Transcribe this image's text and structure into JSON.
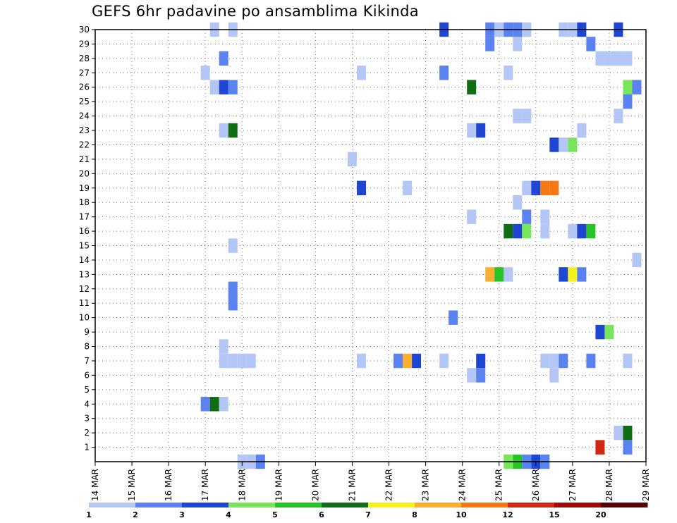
{
  "chart_data": {
    "type": "heatmap",
    "title": "GEFS 6hr padavine po ansamblima Kikinda",
    "x_labels": [
      "14 MAR",
      "15 MAR",
      "16 MAR",
      "17 MAR",
      "18 MAR",
      "19 MAR",
      "20 MAR",
      "21 MAR",
      "22 MAR",
      "23 MAR",
      "24 MAR",
      "25 MAR",
      "26 MAR",
      "27 MAR",
      "28 MAR",
      "29 MAR"
    ],
    "y_labels": [
      "1",
      "2",
      "3",
      "4",
      "5",
      "6",
      "7",
      "8",
      "9",
      "10",
      "11",
      "12",
      "13",
      "14",
      "15",
      "16",
      "17",
      "18",
      "19",
      "20",
      "21",
      "22",
      "23",
      "24",
      "25",
      "26",
      "27",
      "28",
      "29",
      "30"
    ],
    "xlim_days": [
      0,
      15
    ],
    "ylim_members": [
      0,
      30
    ],
    "grid": true,
    "colorbar": {
      "labels": [
        "1",
        "2",
        "3",
        "4",
        "5",
        "6",
        "7",
        "8",
        "10",
        "12",
        "15",
        "20"
      ],
      "colors": [
        "#b4c6f5",
        "#5a82f0",
        "#1e46d2",
        "#78e65a",
        "#28c328",
        "#0f6e14",
        "#f5f01e",
        "#faaf32",
        "#f57814",
        "#d2280f",
        "#a00a0a",
        "#5a0000"
      ]
    },
    "cells": [
      {
        "day": 3.25,
        "member": 30,
        "value": 1
      },
      {
        "day": 3.75,
        "member": 30,
        "value": 1
      },
      {
        "day": 9.5,
        "member": 30,
        "value": 3
      },
      {
        "day": 10.75,
        "member": 30,
        "value": 2
      },
      {
        "day": 11,
        "member": 30,
        "value": 1
      },
      {
        "day": 11.25,
        "member": 30,
        "value": 2
      },
      {
        "day": 11.5,
        "member": 30,
        "value": 2
      },
      {
        "day": 11.75,
        "member": 30,
        "value": 1
      },
      {
        "day": 12.75,
        "member": 30,
        "value": 1
      },
      {
        "day": 13,
        "member": 30,
        "value": 1
      },
      {
        "day": 13.25,
        "member": 30,
        "value": 3
      },
      {
        "day": 14.25,
        "member": 30,
        "value": 3
      },
      {
        "day": 10.75,
        "member": 29,
        "value": 2
      },
      {
        "day": 11.5,
        "member": 29,
        "value": 1
      },
      {
        "day": 13.5,
        "member": 29,
        "value": 2
      },
      {
        "day": 3.5,
        "member": 28,
        "value": 2
      },
      {
        "day": 13.75,
        "member": 28,
        "value": 1
      },
      {
        "day": 14,
        "member": 28,
        "value": 1
      },
      {
        "day": 14.25,
        "member": 28,
        "value": 1
      },
      {
        "day": 14.5,
        "member": 28,
        "value": 1
      },
      {
        "day": 3,
        "member": 27,
        "value": 1
      },
      {
        "day": 7.25,
        "member": 27,
        "value": 1
      },
      {
        "day": 9.5,
        "member": 27,
        "value": 2
      },
      {
        "day": 11.25,
        "member": 27,
        "value": 1
      },
      {
        "day": 3.25,
        "member": 26,
        "value": 1
      },
      {
        "day": 3.5,
        "member": 26,
        "value": 3
      },
      {
        "day": 3.75,
        "member": 26,
        "value": 2
      },
      {
        "day": 10.25,
        "member": 26,
        "value": 6
      },
      {
        "day": 14.5,
        "member": 26,
        "value": 4
      },
      {
        "day": 14.75,
        "member": 26,
        "value": 2
      },
      {
        "day": 14.5,
        "member": 25,
        "value": 2
      },
      {
        "day": 11.5,
        "member": 24,
        "value": 1
      },
      {
        "day": 11.75,
        "member": 24,
        "value": 1
      },
      {
        "day": 14.25,
        "member": 24,
        "value": 1
      },
      {
        "day": 3.5,
        "member": 23,
        "value": 1
      },
      {
        "day": 3.75,
        "member": 23,
        "value": 6
      },
      {
        "day": 10.25,
        "member": 23,
        "value": 1
      },
      {
        "day": 10.5,
        "member": 23,
        "value": 3
      },
      {
        "day": 13.25,
        "member": 23,
        "value": 1
      },
      {
        "day": 12.5,
        "member": 22,
        "value": 3
      },
      {
        "day": 12.75,
        "member": 22,
        "value": 1
      },
      {
        "day": 13,
        "member": 22,
        "value": 4
      },
      {
        "day": 7,
        "member": 21,
        "value": 1
      },
      {
        "day": 7.25,
        "member": 19,
        "value": 3
      },
      {
        "day": 8.5,
        "member": 19,
        "value": 1
      },
      {
        "day": 11.75,
        "member": 19,
        "value": 1
      },
      {
        "day": 12,
        "member": 19,
        "value": 3
      },
      {
        "day": 12.25,
        "member": 19,
        "value": 10
      },
      {
        "day": 12.5,
        "member": 19,
        "value": 10
      },
      {
        "day": 11.5,
        "member": 18,
        "value": 1
      },
      {
        "day": 10.25,
        "member": 17,
        "value": 1
      },
      {
        "day": 11.75,
        "member": 17,
        "value": 2
      },
      {
        "day": 12.25,
        "member": 17,
        "value": 1
      },
      {
        "day": 11.25,
        "member": 16,
        "value": 6
      },
      {
        "day": 11.5,
        "member": 16,
        "value": 3
      },
      {
        "day": 11.75,
        "member": 16,
        "value": 4
      },
      {
        "day": 12.25,
        "member": 16,
        "value": 1
      },
      {
        "day": 13,
        "member": 16,
        "value": 1
      },
      {
        "day": 13.25,
        "member": 16,
        "value": 3
      },
      {
        "day": 13.5,
        "member": 16,
        "value": 5
      },
      {
        "day": 3.75,
        "member": 15,
        "value": 1
      },
      {
        "day": 14.75,
        "member": 14,
        "value": 1
      },
      {
        "day": 10.75,
        "member": 13,
        "value": 8
      },
      {
        "day": 11,
        "member": 13,
        "value": 5
      },
      {
        "day": 11.25,
        "member": 13,
        "value": 1
      },
      {
        "day": 12.75,
        "member": 13,
        "value": 3
      },
      {
        "day": 13,
        "member": 13,
        "value": 7
      },
      {
        "day": 13.25,
        "member": 13,
        "value": 2
      },
      {
        "day": 3.75,
        "member": 12,
        "value": 2
      },
      {
        "day": 3.75,
        "member": 11,
        "value": 2
      },
      {
        "day": 9.75,
        "member": 10,
        "value": 2
      },
      {
        "day": 13.75,
        "member": 9,
        "value": 3
      },
      {
        "day": 14,
        "member": 9,
        "value": 4
      },
      {
        "day": 3.5,
        "member": 8,
        "value": 1
      },
      {
        "day": 3.5,
        "member": 7,
        "value": 1
      },
      {
        "day": 3.75,
        "member": 7,
        "value": 1
      },
      {
        "day": 4,
        "member": 7,
        "value": 1
      },
      {
        "day": 4.25,
        "member": 7,
        "value": 1
      },
      {
        "day": 7.25,
        "member": 7,
        "value": 1
      },
      {
        "day": 8.25,
        "member": 7,
        "value": 2
      },
      {
        "day": 8.5,
        "member": 7,
        "value": 8
      },
      {
        "day": 8.75,
        "member": 7,
        "value": 3
      },
      {
        "day": 9.5,
        "member": 7,
        "value": 1
      },
      {
        "day": 10.5,
        "member": 7,
        "value": 3
      },
      {
        "day": 12.25,
        "member": 7,
        "value": 1
      },
      {
        "day": 12.5,
        "member": 7,
        "value": 1
      },
      {
        "day": 12.75,
        "member": 7,
        "value": 2
      },
      {
        "day": 13.5,
        "member": 7,
        "value": 2
      },
      {
        "day": 14.5,
        "member": 7,
        "value": 1
      },
      {
        "day": 10.25,
        "member": 6,
        "value": 1
      },
      {
        "day": 10.5,
        "member": 6,
        "value": 2
      },
      {
        "day": 12.5,
        "member": 6,
        "value": 1
      },
      {
        "day": 3,
        "member": 4,
        "value": 2
      },
      {
        "day": 3.25,
        "member": 4,
        "value": 6
      },
      {
        "day": 3.5,
        "member": 4,
        "value": 1
      },
      {
        "day": 14.5,
        "member": 2,
        "value": 6
      },
      {
        "day": 14.25,
        "member": 2,
        "value": 1
      },
      {
        "day": 13.75,
        "member": 1,
        "value": 12
      },
      {
        "day": 14.5,
        "member": 1,
        "value": 2
      },
      {
        "day": 4,
        "member": 0,
        "value": 1
      },
      {
        "day": 4.25,
        "member": 0,
        "value": 1
      },
      {
        "day": 4.5,
        "member": 0,
        "value": 2
      },
      {
        "day": 11.25,
        "member": 0,
        "value": 4
      },
      {
        "day": 11.5,
        "member": 0,
        "value": 5
      },
      {
        "day": 11.75,
        "member": 0,
        "value": 2
      },
      {
        "day": 12,
        "member": 0,
        "value": 3
      },
      {
        "day": 12.25,
        "member": 0,
        "value": 2
      }
    ]
  }
}
